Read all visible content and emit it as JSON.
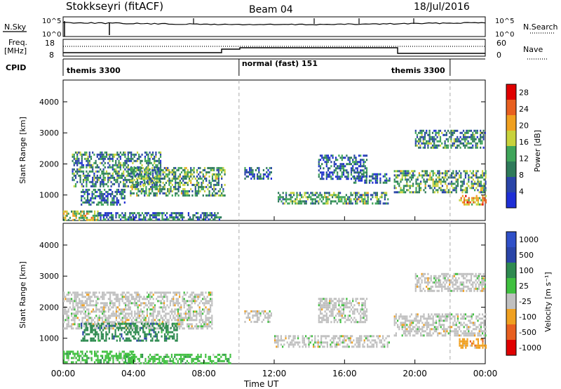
{
  "header": {
    "station": "Stokkseyri (fitACF)",
    "beam": "Beam 04",
    "date": "18/Jul/2016"
  },
  "labels": {
    "nsky": "N.Sky",
    "nsearch": "N.Search",
    "freq": "Freq.",
    "freq_unit": "[MHz]",
    "nave": "Nave",
    "cpid": "CPID",
    "ylabel_range": "Slant Range [km]",
    "xlabel": "Time UT",
    "power_label": "Power [dB]",
    "velocity_label": "Velocity [m s⁻¹]"
  },
  "noise_panel": {
    "left_ticks": [
      "10^5",
      "10^0"
    ],
    "right_ticks": [
      "10^5",
      "10^0"
    ]
  },
  "freq_panel": {
    "left_ticks": [
      "18",
      "8"
    ],
    "right_ticks": [
      "60",
      "0"
    ]
  },
  "cpid_segments": [
    {
      "label": "themis 3300",
      "start_hour": 0,
      "end_hour": 10
    },
    {
      "label": "normal (fast) 151",
      "start_hour": 10,
      "end_hour": 22
    },
    {
      "label": "themis 3300",
      "start_hour": 22,
      "end_hour": 24
    }
  ],
  "colors": {
    "power_scale": [
      "#1f2fd6",
      "#2a45a8",
      "#2e7a5a",
      "#3fa55a",
      "#c8d23c",
      "#f0a020",
      "#e86020",
      "#e00000"
    ],
    "velocity_scale": [
      "#3050c8",
      "#2a45a8",
      "#2e8a50",
      "#40c040",
      "#c0c0c0",
      "#f0a020",
      "#e86020",
      "#e00000"
    ]
  },
  "chart_data": [
    {
      "type": "heatmap",
      "name": "power",
      "title": "Beam 04",
      "xlabel": "Time UT",
      "ylabel": "Slant Range [km]",
      "x_ticks": [
        "00:00",
        "04:00",
        "08:00",
        "12:00",
        "16:00",
        "20:00",
        "00:00"
      ],
      "xlim_hours": [
        0,
        24
      ],
      "ylim_km": [
        180,
        4700
      ],
      "y_ticks": [
        1000,
        2000,
        3000,
        4000
      ],
      "colorbar_label": "Power [dB]",
      "colorbar_ticks": [
        4,
        8,
        12,
        16,
        20,
        24,
        28
      ],
      "colorbar_range": [
        0,
        30
      ],
      "bands": [
        {
          "t0": 0.5,
          "t1": 5.5,
          "r0": 1300,
          "r1": 2400,
          "level": 10
        },
        {
          "t0": 3.8,
          "t1": 9.2,
          "r0": 1000,
          "r1": 1900,
          "level": 12
        },
        {
          "t0": 1.0,
          "t1": 3.5,
          "r0": 700,
          "r1": 1200,
          "level": 8
        },
        {
          "t0": 0.0,
          "t1": 2.0,
          "r0": 200,
          "r1": 500,
          "level": 16
        },
        {
          "t0": 2.0,
          "t1": 9.0,
          "r0": 200,
          "r1": 450,
          "level": 8
        },
        {
          "t0": 10.3,
          "t1": 11.8,
          "r0": 1500,
          "r1": 1900,
          "level": 6
        },
        {
          "t0": 12.2,
          "t1": 18.5,
          "r0": 700,
          "r1": 1100,
          "level": 12
        },
        {
          "t0": 14.5,
          "t1": 17.3,
          "r0": 1500,
          "r1": 2300,
          "level": 7
        },
        {
          "t0": 16.5,
          "t1": 18.6,
          "r0": 1400,
          "r1": 1700,
          "level": 6
        },
        {
          "t0": 18.8,
          "t1": 24.0,
          "r0": 1100,
          "r1": 1800,
          "level": 12
        },
        {
          "t0": 20.0,
          "t1": 24.0,
          "r0": 2500,
          "r1": 3100,
          "level": 10
        },
        {
          "t0": 22.5,
          "t1": 24.0,
          "r0": 700,
          "r1": 1000,
          "level": 20
        }
      ]
    },
    {
      "type": "heatmap",
      "name": "velocity",
      "xlabel": "Time UT",
      "ylabel": "Slant Range [km]",
      "x_ticks": [
        "00:00",
        "04:00",
        "08:00",
        "12:00",
        "16:00",
        "20:00",
        "00:00"
      ],
      "xlim_hours": [
        0,
        24
      ],
      "ylim_km": [
        180,
        4700
      ],
      "y_ticks": [
        1000,
        2000,
        3000,
        4000
      ],
      "colorbar_label": "Velocity [m s⁻¹]",
      "colorbar_ticks": [
        "1000",
        "500",
        "100",
        "25",
        "-25",
        "-100",
        "-500",
        "-1000"
      ],
      "bands": [
        {
          "t0": 0.0,
          "t1": 8.5,
          "r0": 1300,
          "r1": 2500,
          "class": 4
        },
        {
          "t0": 1.0,
          "t1": 6.5,
          "r0": 900,
          "r1": 1500,
          "class": 2
        },
        {
          "t0": 0.0,
          "t1": 4.0,
          "r0": 200,
          "r1": 600,
          "class": 3
        },
        {
          "t0": 3.5,
          "t1": 9.5,
          "r0": 200,
          "r1": 500,
          "class": 3
        },
        {
          "t0": 10.3,
          "t1": 11.8,
          "r0": 1500,
          "r1": 1900,
          "class": 4
        },
        {
          "t0": 12.0,
          "t1": 18.5,
          "r0": 700,
          "r1": 1100,
          "class": 4
        },
        {
          "t0": 14.5,
          "t1": 17.3,
          "r0": 1500,
          "r1": 2300,
          "class": 4
        },
        {
          "t0": 18.8,
          "t1": 24.0,
          "r0": 1100,
          "r1": 1800,
          "class": 4
        },
        {
          "t0": 20.0,
          "t1": 24.0,
          "r0": 2500,
          "r1": 3100,
          "class": 4
        },
        {
          "t0": 22.5,
          "t1": 24.0,
          "r0": 700,
          "r1": 1000,
          "class": 5
        }
      ]
    }
  ]
}
